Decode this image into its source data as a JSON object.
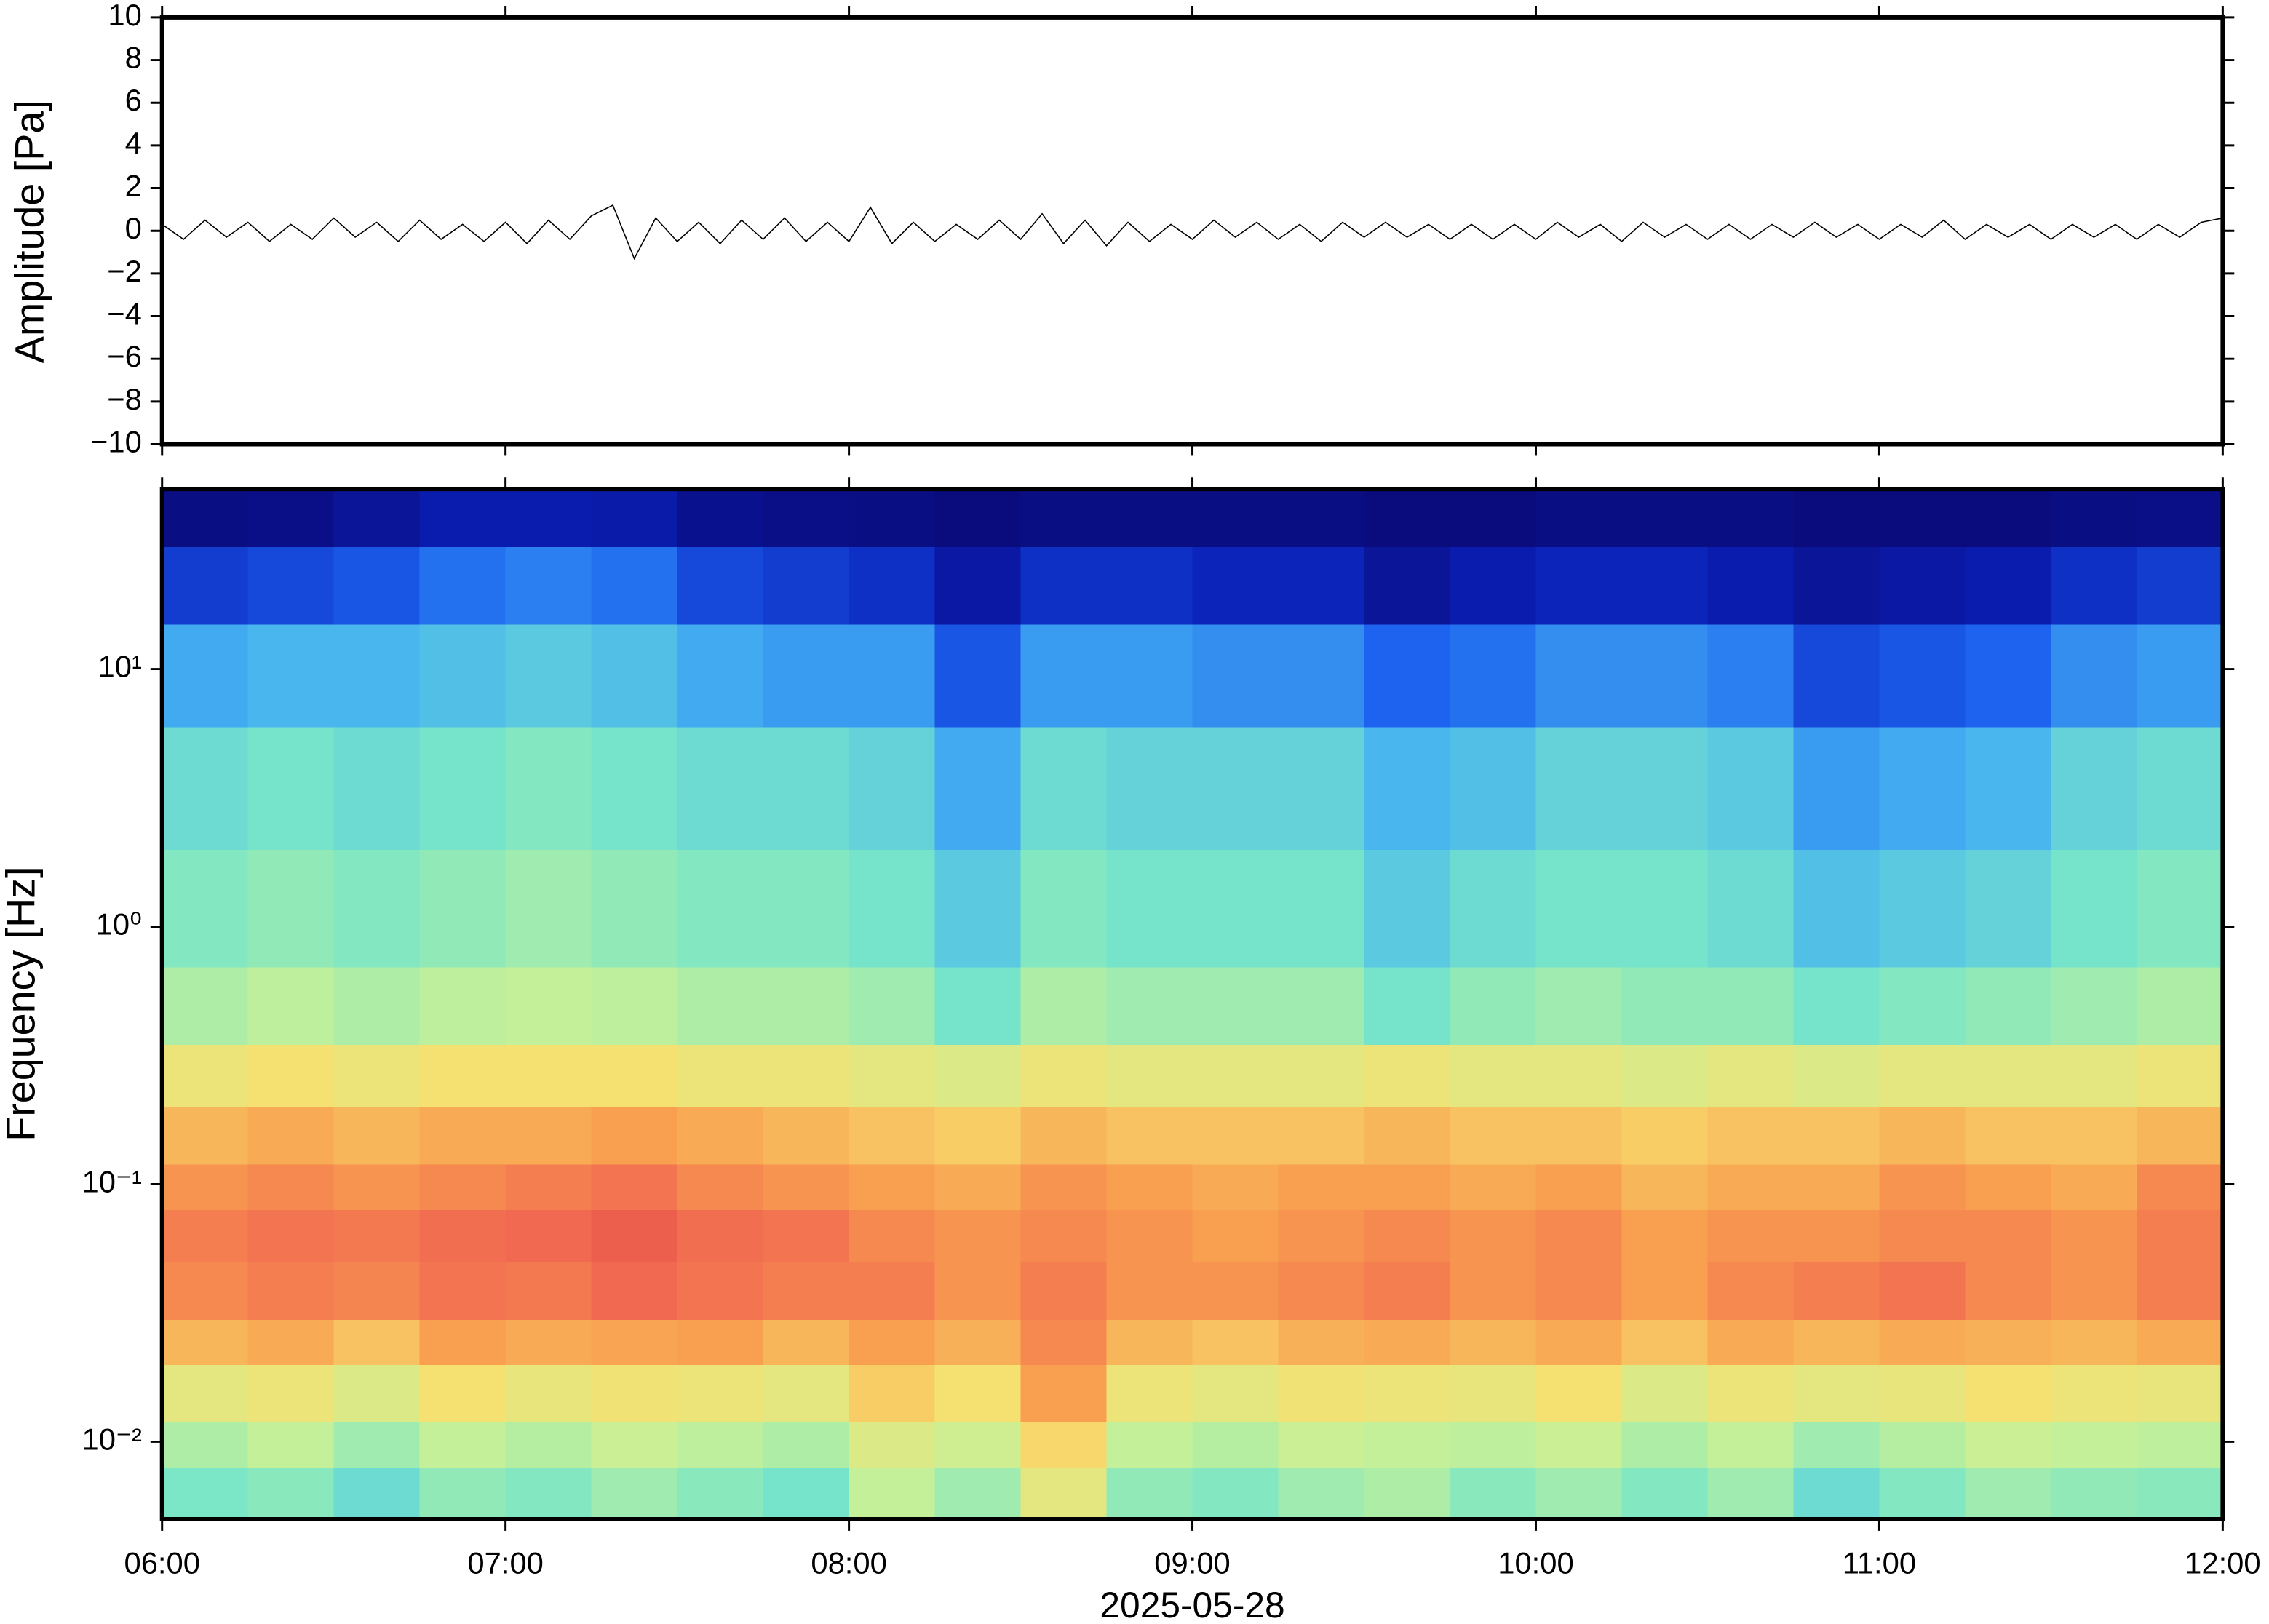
{
  "chart_data": [
    {
      "type": "line",
      "ylabel": "Amplitude [Pa]",
      "xlim": [
        6,
        12
      ],
      "ylim": [
        -10,
        10
      ],
      "yticks": [
        {
          "value": -10,
          "label": "−10"
        },
        {
          "value": -8,
          "label": "−8"
        },
        {
          "value": -6,
          "label": "−6"
        },
        {
          "value": -4,
          "label": "−4"
        },
        {
          "value": -2,
          "label": "−2"
        },
        0,
        2,
        4,
        6,
        8,
        10
      ],
      "color": "#000000",
      "x": [
        6,
        6.0625,
        6.125,
        6.1875,
        6.25,
        6.3125,
        6.375,
        6.4375,
        6.5,
        6.5625,
        6.625,
        6.6875,
        6.75,
        6.8125,
        6.875,
        6.9375,
        7,
        7.0625,
        7.125,
        7.1875,
        7.25,
        7.3125,
        7.375,
        7.4375,
        7.5,
        7.5625,
        7.625,
        7.6875,
        7.75,
        7.8125,
        7.875,
        7.9375,
        8,
        8.0625,
        8.125,
        8.1875,
        8.25,
        8.3125,
        8.375,
        8.4375,
        8.5,
        8.5625,
        8.625,
        8.6875,
        8.75,
        8.8125,
        8.875,
        8.9375,
        9,
        9.0625,
        9.125,
        9.1875,
        9.25,
        9.3125,
        9.375,
        9.4375,
        9.5,
        9.5625,
        9.625,
        9.6875,
        9.75,
        9.8125,
        9.875,
        9.9375,
        10,
        10.0625,
        10.125,
        10.1875,
        10.25,
        10.3125,
        10.375,
        10.4375,
        10.5,
        10.5625,
        10.625,
        10.6875,
        10.75,
        10.8125,
        10.875,
        10.9375,
        11,
        11.0625,
        11.125,
        11.1875,
        11.25,
        11.3125,
        11.375,
        11.4375,
        11.5,
        11.5625,
        11.625,
        11.6875,
        11.75,
        11.8125,
        11.875,
        11.9375,
        12
      ],
      "values": [
        0.3,
        -0.4,
        0.5,
        -0.3,
        0.4,
        -0.5,
        0.3,
        -0.4,
        0.6,
        -0.3,
        0.4,
        -0.5,
        0.5,
        -0.4,
        0.3,
        -0.5,
        0.4,
        -0.6,
        0.5,
        -0.4,
        0.7,
        1.2,
        -1.3,
        0.6,
        -0.5,
        0.4,
        -0.6,
        0.5,
        -0.4,
        0.6,
        -0.5,
        0.4,
        -0.5,
        1.1,
        -0.6,
        0.4,
        -0.5,
        0.3,
        -0.4,
        0.5,
        -0.4,
        0.8,
        -0.6,
        0.5,
        -0.7,
        0.4,
        -0.5,
        0.3,
        -0.4,
        0.5,
        -0.3,
        0.4,
        -0.4,
        0.3,
        -0.5,
        0.4,
        -0.3,
        0.4,
        -0.3,
        0.3,
        -0.4,
        0.3,
        -0.4,
        0.3,
        -0.4,
        0.4,
        -0.3,
        0.3,
        -0.5,
        0.4,
        -0.3,
        0.3,
        -0.4,
        0.3,
        -0.4,
        0.3,
        -0.3,
        0.4,
        -0.3,
        0.3,
        -0.4,
        0.3,
        -0.3,
        0.5,
        -0.4,
        0.3,
        -0.3,
        0.3,
        -0.4,
        0.3,
        -0.3,
        0.3,
        -0.4,
        0.3,
        -0.3,
        0.4,
        0.6
      ]
    },
    {
      "type": "heatmap",
      "ylabel": "Frequency [Hz]",
      "xlabel": "2025-05-28",
      "xlim": [
        6,
        12
      ],
      "xticks": [
        {
          "value": 6,
          "label": "06:00"
        },
        {
          "value": 7,
          "label": "07:00"
        },
        {
          "value": 8,
          "label": "08:00"
        },
        {
          "value": 9,
          "label": "09:00"
        },
        {
          "value": 10,
          "label": "10:00"
        },
        {
          "value": 11,
          "label": "11:00"
        },
        {
          "value": 12,
          "label": "12:00"
        }
      ],
      "ylim": [
        0.005,
        50
      ],
      "ylog": true,
      "yticks": [
        {
          "value": 0.01,
          "label": "10⁻²"
        },
        {
          "value": 0.1,
          "label": "10⁻¹"
        },
        {
          "value": 1,
          "label": "10⁰"
        },
        {
          "value": 10,
          "label": "10¹"
        }
      ],
      "colormap": [
        "#0a0a78",
        "#0a1eb4",
        "#1e64f0",
        "#46b4f0",
        "#78e6c8",
        "#c8f096",
        "#f8e070",
        "#f8a050",
        "#f06450",
        "#d03030"
      ],
      "x_edges": [
        6,
        6.25,
        6.5,
        6.75,
        7,
        7.25,
        7.5,
        7.75,
        8,
        8.25,
        8.5,
        8.75,
        9,
        9.25,
        9.5,
        9.75,
        10,
        10.25,
        10.5,
        10.75,
        11,
        11.25,
        11.5,
        11.75,
        12
      ],
      "y_edges": [
        0.005,
        0.008,
        0.012,
        0.02,
        0.03,
        0.05,
        0.08,
        0.12,
        0.2,
        0.35,
        0.7,
        2,
        6,
        15,
        30,
        50
      ],
      "z": [
        [
          0.45,
          0.47,
          0.42,
          0.48,
          0.46,
          0.5,
          0.47,
          0.44,
          0.55,
          0.5,
          0.62,
          0.48,
          0.46,
          0.5,
          0.52,
          0.47,
          0.5,
          0.46,
          0.5,
          0.42,
          0.46,
          0.5,
          0.48,
          0.47
        ],
        [
          0.52,
          0.55,
          0.5,
          0.55,
          0.53,
          0.56,
          0.54,
          0.52,
          0.6,
          0.57,
          0.68,
          0.55,
          0.53,
          0.56,
          0.55,
          0.54,
          0.56,
          0.52,
          0.55,
          0.5,
          0.53,
          0.56,
          0.55,
          0.54
        ],
        [
          0.62,
          0.64,
          0.6,
          0.66,
          0.63,
          0.65,
          0.64,
          0.62,
          0.7,
          0.66,
          0.78,
          0.64,
          0.62,
          0.65,
          0.64,
          0.63,
          0.66,
          0.6,
          0.64,
          0.62,
          0.63,
          0.66,
          0.64,
          0.63
        ],
        [
          0.74,
          0.76,
          0.72,
          0.78,
          0.76,
          0.77,
          0.78,
          0.74,
          0.78,
          0.75,
          0.82,
          0.74,
          0.72,
          0.75,
          0.76,
          0.74,
          0.76,
          0.72,
          0.76,
          0.74,
          0.76,
          0.75,
          0.74,
          0.76
        ],
        [
          0.82,
          0.84,
          0.83,
          0.86,
          0.85,
          0.88,
          0.86,
          0.84,
          0.84,
          0.8,
          0.84,
          0.8,
          0.8,
          0.82,
          0.84,
          0.8,
          0.82,
          0.78,
          0.82,
          0.84,
          0.86,
          0.82,
          0.8,
          0.84
        ],
        [
          0.84,
          0.86,
          0.85,
          0.87,
          0.88,
          0.9,
          0.87,
          0.86,
          0.82,
          0.8,
          0.82,
          0.8,
          0.78,
          0.8,
          0.82,
          0.8,
          0.82,
          0.78,
          0.8,
          0.8,
          0.82,
          0.82,
          0.8,
          0.84
        ],
        [
          0.8,
          0.82,
          0.8,
          0.82,
          0.84,
          0.86,
          0.82,
          0.8,
          0.78,
          0.76,
          0.8,
          0.78,
          0.76,
          0.78,
          0.78,
          0.76,
          0.78,
          0.74,
          0.76,
          0.76,
          0.8,
          0.78,
          0.76,
          0.82
        ],
        [
          0.74,
          0.76,
          0.74,
          0.76,
          0.76,
          0.78,
          0.76,
          0.74,
          0.72,
          0.7,
          0.74,
          0.72,
          0.72,
          0.72,
          0.74,
          0.72,
          0.72,
          0.7,
          0.72,
          0.72,
          0.74,
          0.72,
          0.72,
          0.74
        ],
        [
          0.64,
          0.66,
          0.64,
          0.66,
          0.66,
          0.66,
          0.64,
          0.64,
          0.62,
          0.6,
          0.64,
          0.62,
          0.62,
          0.62,
          0.64,
          0.62,
          0.62,
          0.6,
          0.62,
          0.6,
          0.62,
          0.62,
          0.62,
          0.64
        ],
        [
          0.52,
          0.54,
          0.52,
          0.54,
          0.55,
          0.54,
          0.52,
          0.52,
          0.5,
          0.44,
          0.52,
          0.5,
          0.5,
          0.5,
          0.44,
          0.48,
          0.5,
          0.48,
          0.48,
          0.44,
          0.46,
          0.48,
          0.5,
          0.52
        ],
        [
          0.46,
          0.48,
          0.46,
          0.48,
          0.5,
          0.48,
          0.46,
          0.46,
          0.44,
          0.38,
          0.46,
          0.44,
          0.44,
          0.44,
          0.38,
          0.42,
          0.44,
          0.44,
          0.42,
          0.36,
          0.38,
          0.4,
          0.44,
          0.46
        ],
        [
          0.42,
          0.44,
          0.42,
          0.44,
          0.46,
          0.44,
          0.42,
          0.42,
          0.4,
          0.32,
          0.42,
          0.4,
          0.4,
          0.4,
          0.34,
          0.36,
          0.4,
          0.4,
          0.38,
          0.3,
          0.32,
          0.34,
          0.4,
          0.42
        ],
        [
          0.32,
          0.34,
          0.34,
          0.36,
          0.38,
          0.36,
          0.32,
          0.3,
          0.3,
          0.2,
          0.3,
          0.3,
          0.28,
          0.28,
          0.22,
          0.24,
          0.28,
          0.28,
          0.26,
          0.18,
          0.2,
          0.22,
          0.28,
          0.3
        ],
        [
          0.16,
          0.18,
          0.2,
          0.24,
          0.26,
          0.24,
          0.18,
          0.16,
          0.14,
          0.08,
          0.14,
          0.14,
          0.12,
          0.12,
          0.06,
          0.1,
          0.12,
          0.12,
          0.1,
          0.06,
          0.08,
          0.1,
          0.14,
          0.16
        ],
        [
          0.02,
          0.03,
          0.06,
          0.1,
          0.1,
          0.09,
          0.04,
          0.03,
          0.02,
          0.01,
          0.02,
          0.02,
          0.02,
          0.02,
          0.01,
          0.01,
          0.02,
          0.02,
          0.02,
          0.01,
          0.01,
          0.01,
          0.02,
          0.03
        ]
      ]
    }
  ]
}
